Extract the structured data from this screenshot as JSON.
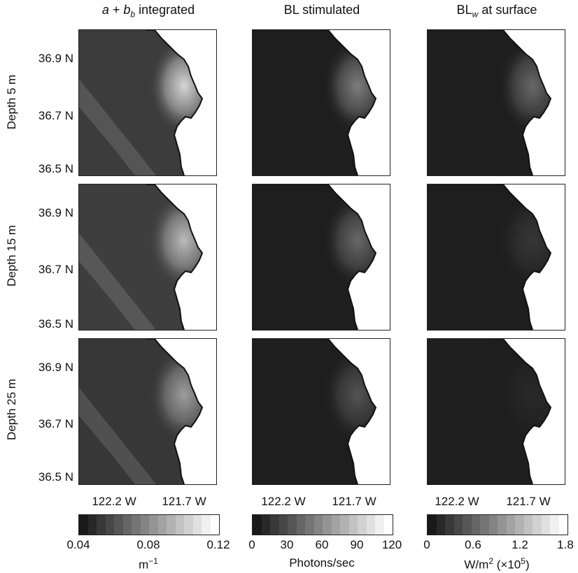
{
  "chart_data": {
    "type": "heatmap",
    "columns": [
      {
        "title_parts": [
          "a",
          " + ",
          "b",
          "b",
          " integrated"
        ],
        "colorbar_ticks": [
          "0.04",
          "0.08",
          "0.12"
        ],
        "unit": "m",
        "unit_sup": "−1",
        "unit_suffix": "",
        "range": [
          0.04,
          0.12
        ]
      },
      {
        "title_parts": [
          "BL stimulated"
        ],
        "colorbar_ticks": [
          "0",
          "30",
          "60",
          "90",
          "120"
        ],
        "unit": "Photons/sec",
        "unit_sup": "",
        "unit_suffix": "",
        "range": [
          0,
          120
        ]
      },
      {
        "title_parts": [
          "BL",
          "w",
          " at  surface"
        ],
        "colorbar_ticks": [
          "0",
          "0.6",
          "1.2",
          "1.8"
        ],
        "unit": "W/m",
        "unit_sup": "2",
        "unit_suffix": " (×10",
        "unit_sup2": "5",
        "unit_end": ")",
        "range": [
          0,
          1.8
        ]
      }
    ],
    "rows": [
      {
        "label": "Depth 5 m"
      },
      {
        "label": "Depth 15 m"
      },
      {
        "label": "Depth 25 m"
      }
    ],
    "ytick_labels": [
      "36.9 N",
      "36.7 N",
      "36.5 N"
    ],
    "xtick_labels": [
      "122.2 W",
      "121.7 W"
    ],
    "colormap": "gray"
  }
}
